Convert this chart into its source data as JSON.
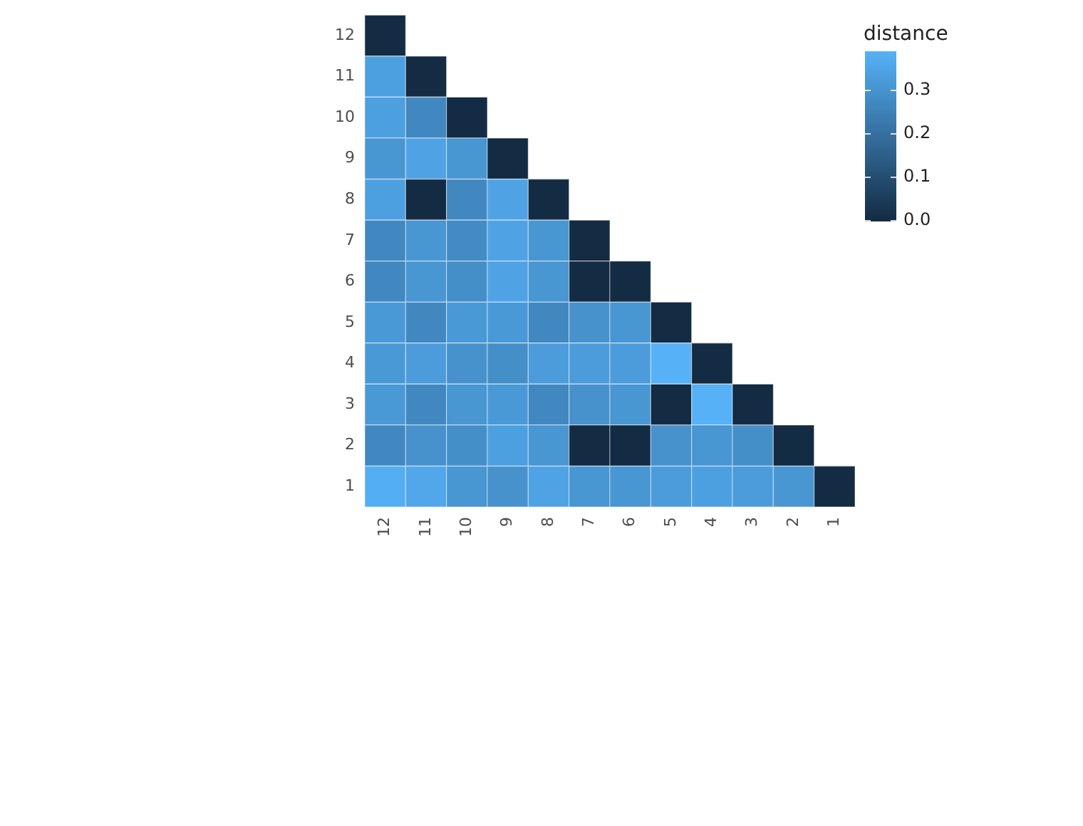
{
  "chart_data": {
    "type": "heatmap",
    "clabel": "distance",
    "categories": [
      "12",
      "11",
      "10",
      "9",
      "8",
      "7",
      "6",
      "5",
      "4",
      "3",
      "2",
      "1"
    ],
    "y_categories": [
      "12",
      "11",
      "10",
      "9",
      "8",
      "7",
      "6",
      "5",
      "4",
      "3",
      "2",
      "1"
    ],
    "cells": [
      [
        0,
        null,
        null,
        null,
        null,
        null,
        null,
        null,
        null,
        null,
        null,
        null
      ],
      [
        0.34,
        0,
        null,
        null,
        null,
        null,
        null,
        null,
        null,
        null,
        null,
        null
      ],
      [
        0.34,
        0.27,
        0,
        null,
        null,
        null,
        null,
        null,
        null,
        null,
        null,
        null
      ],
      [
        0.31,
        0.35,
        0.31,
        0,
        null,
        null,
        null,
        null,
        null,
        null,
        null,
        null
      ],
      [
        0.34,
        0,
        0.27,
        0.35,
        0,
        null,
        null,
        null,
        null,
        null,
        null,
        null
      ],
      [
        0.27,
        0.31,
        0.28,
        0.35,
        0.31,
        0,
        null,
        null,
        null,
        null,
        null,
        null
      ],
      [
        0.27,
        0.31,
        0.29,
        0.35,
        0.31,
        0,
        0,
        null,
        null,
        null,
        null,
        null
      ],
      [
        0.32,
        0.27,
        0.32,
        0.32,
        0.27,
        0.3,
        0.31,
        0,
        null,
        null,
        null,
        null
      ],
      [
        0.32,
        0.33,
        0.3,
        0.29,
        0.33,
        0.33,
        0.33,
        0.39,
        0,
        null,
        null,
        null
      ],
      [
        0.32,
        0.27,
        0.31,
        0.32,
        0.27,
        0.3,
        0.31,
        0,
        0.39,
        0,
        null,
        null
      ],
      [
        0.27,
        0.3,
        0.29,
        0.34,
        0.31,
        0,
        0,
        0.3,
        0.31,
        0.29,
        0,
        null
      ],
      [
        0.38,
        0.36,
        0.31,
        0.3,
        0.35,
        0.31,
        0.31,
        0.33,
        0.34,
        0.33,
        0.31,
        0
      ]
    ],
    "clim": [
      0,
      0.39
    ],
    "cticks": [
      {
        "value": 0,
        "label": "0.0"
      },
      {
        "value": 0.1,
        "label": "0.1"
      },
      {
        "value": 0.2,
        "label": "0.2"
      },
      {
        "value": 0.3,
        "label": "0.3"
      }
    ]
  }
}
